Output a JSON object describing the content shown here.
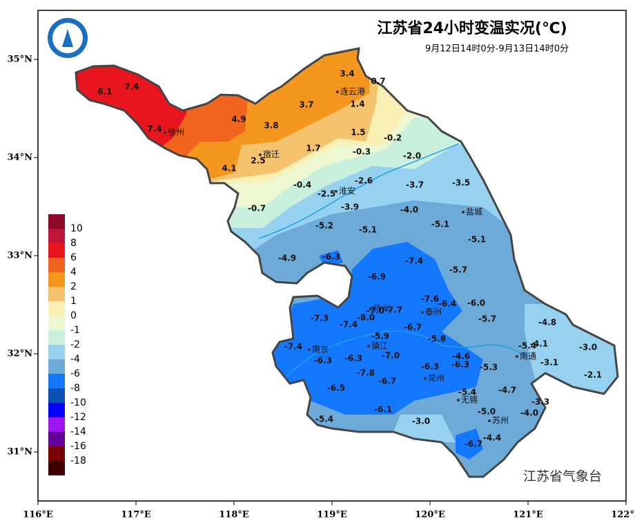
{
  "header": {
    "title": "江苏省24小时变温实况(℃)",
    "subtitle": "9月12日14时0分-9月13日14时0分"
  },
  "watermark": "江苏省气象台",
  "axes": {
    "xlim": [
      116,
      122
    ],
    "ylim": [
      30.5,
      35.5
    ],
    "xticks": [
      {
        "value": 116,
        "label": "116°E"
      },
      {
        "value": 117,
        "label": "117°E"
      },
      {
        "value": 118,
        "label": "118°E"
      },
      {
        "value": 119,
        "label": "119°E"
      },
      {
        "value": 120,
        "label": "120°E"
      },
      {
        "value": 121,
        "label": "121°E"
      },
      {
        "value": 122,
        "label": "122°E"
      }
    ],
    "yticks": [
      {
        "value": 31,
        "label": "31°N"
      },
      {
        "value": 32,
        "label": "32°N"
      },
      {
        "value": 33,
        "label": "33°N"
      },
      {
        "value": 34,
        "label": "34°N"
      },
      {
        "value": 35,
        "label": "35°N"
      }
    ]
  },
  "legend": {
    "labels": [
      10,
      8,
      6,
      4,
      2,
      1,
      0,
      -1,
      -2,
      -4,
      -6,
      -8,
      -10,
      -12,
      -14,
      -16,
      -18
    ],
    "colors": [
      "#8b0a2a",
      "#c0143c",
      "#e8141e",
      "#f0641e",
      "#f5961e",
      "#f5c36e",
      "#fbf0b4",
      "#eef8d0",
      "#c8f0dc",
      "#96d2f0",
      "#6eaad7",
      "#1478ff",
      "#0a50b4",
      "#0000ff",
      "#a014f0",
      "#640096",
      "#780000",
      "#3c0000"
    ]
  },
  "cities": [
    "连云港",
    "徐州",
    "宿迁",
    "淮安",
    "盐城",
    "扬州",
    "泰州",
    "南京",
    "镇江",
    "常州",
    "南通",
    "无锡",
    "苏州"
  ],
  "stations": [
    {
      "value": 6.1
    },
    {
      "value": 7.4
    },
    {
      "value": 7.4
    },
    {
      "value": 4.9
    },
    {
      "value": 3.8
    },
    {
      "value": 3.7
    },
    {
      "value": 3.4
    },
    {
      "value": 0.7
    },
    {
      "value": 1.4
    },
    {
      "value": 1.5
    },
    {
      "value": 1.7
    },
    {
      "value": 2.5
    },
    {
      "value": 4.1
    },
    {
      "value": -0.3
    },
    {
      "value": -0.2
    },
    {
      "value": -2,
      "label": "-2.0"
    },
    {
      "value": -0.4
    },
    {
      "value": -2.5
    },
    {
      "value": -2.6
    },
    {
      "value": -3.7
    },
    {
      "value": -3.5
    },
    {
      "value": -0.7
    },
    {
      "value": -3.9
    },
    {
      "value": -4,
      "label": "-4.0"
    },
    {
      "value": -5.2
    },
    {
      "value": -5.1
    },
    {
      "value": -5.1
    },
    {
      "value": -5.1
    },
    {
      "value": -4.9
    },
    {
      "value": -6.3
    },
    {
      "value": -7.4
    },
    {
      "value": -5.7
    },
    {
      "value": -6.9
    },
    {
      "value": -7.6
    },
    {
      "value": -6.4
    },
    {
      "value": -6,
      "label": "-6.0"
    },
    {
      "value": -7,
      "label": "-7.0"
    },
    {
      "value": -7.7
    },
    {
      "value": -8,
      "label": "-8.0"
    },
    {
      "value": -7.3
    },
    {
      "value": -7.4
    },
    {
      "value": -6.7
    },
    {
      "value": -5.7
    },
    {
      "value": -4.8
    },
    {
      "value": -5.9
    },
    {
      "value": -5.8
    },
    {
      "value": -7.4
    },
    {
      "value": -5.4
    },
    {
      "value": -4.1
    },
    {
      "value": -3,
      "label": "-3.0"
    },
    {
      "value": -7,
      "label": "-7.0"
    },
    {
      "value": -4.6
    },
    {
      "value": -6.3
    },
    {
      "value": -6.3
    },
    {
      "value": -6.3
    },
    {
      "value": -6.3
    },
    {
      "value": -5.3
    },
    {
      "value": -3.1
    },
    {
      "value": -2.1
    },
    {
      "value": -7.8
    },
    {
      "value": -6.7
    },
    {
      "value": -6.5
    },
    {
      "value": -4.7
    },
    {
      "value": -5.4
    },
    {
      "value": -3.3
    },
    {
      "value": -5,
      "label": "-5.0"
    },
    {
      "value": -4,
      "label": "-4.0"
    },
    {
      "value": -6.1
    },
    {
      "value": -3,
      "label": "-3.0"
    },
    {
      "value": -5.4
    },
    {
      "value": -4.4
    },
    {
      "value": -6.7
    }
  ]
}
